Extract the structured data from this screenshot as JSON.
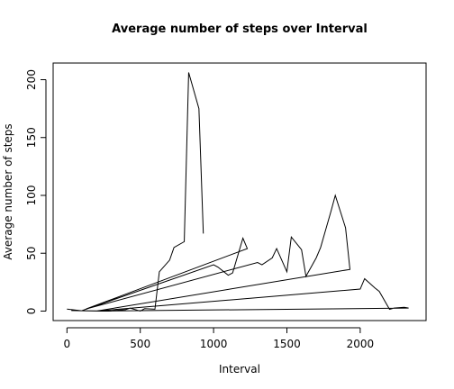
{
  "chart_data": {
    "type": "line",
    "title": "Average number of steps over Interval",
    "xlabel": "Interval",
    "ylabel": "Average number of steps",
    "x": [
      0,
      100,
      1000,
      1030,
      1100,
      1130,
      1200,
      1230,
      130,
      1300,
      1330,
      1400,
      1430,
      1500,
      1530,
      1600,
      1630,
      1700,
      1730,
      1800,
      1830,
      1900,
      1930,
      200,
      2000,
      2030,
      2100,
      2130,
      2200,
      2230,
      2300,
      2330,
      230,
      30,
      300,
      330,
      400,
      430,
      500,
      530,
      600,
      630,
      700,
      730,
      800,
      830,
      900,
      930
    ],
    "values": [
      1.7,
      0.3,
      40,
      38,
      31,
      33,
      63,
      54,
      1.8,
      42,
      40,
      46,
      54,
      34,
      64,
      53,
      30,
      46,
      55,
      86,
      100,
      72,
      36,
      0,
      19,
      28,
      20,
      17,
      1.5,
      2.6,
      3.3,
      2.6,
      0,
      0.5,
      0,
      0.6,
      1.2,
      2.6,
      0,
      2.1,
      1.6,
      34,
      44,
      55,
      60,
      206.2,
      175,
      67
    ],
    "color": "#000000",
    "xlim": [
      -94.2,
      2449.2
    ],
    "xticks": [
      0,
      500,
      1000,
      1500,
      2000
    ],
    "ylim": [
      -8.2,
      214.4
    ],
    "yticks": [
      0,
      50,
      100,
      150,
      200
    ]
  }
}
